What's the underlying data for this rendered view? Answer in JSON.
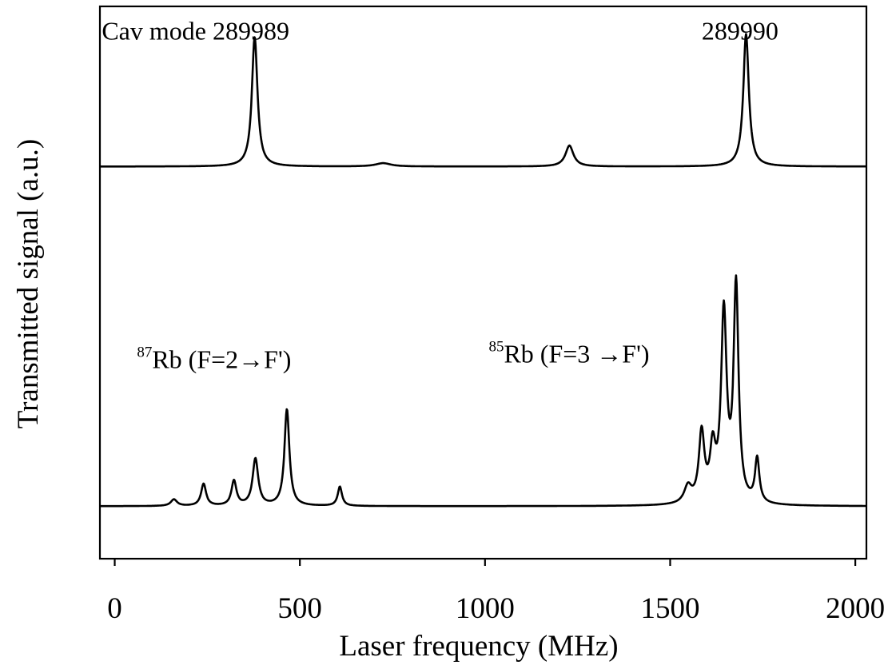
{
  "chart_data": {
    "type": "line",
    "title": "",
    "xlabel": "Laser frequency (MHz)",
    "ylabel": "Transmitted signal (a.u.)",
    "xlim": [
      -40,
      2030
    ],
    "ylim": [
      0,
      1
    ],
    "x_ticks": [
      0,
      500,
      1000,
      1500,
      2000
    ],
    "x_tick_labels": [
      "0",
      "500",
      "1000",
      "1500",
      "2000"
    ],
    "y_ticks": [],
    "grid": false,
    "legend": "none",
    "series": [
      {
        "baseline": 0.71,
        "peaks": [
          {
            "x": 378,
            "height": 0.235,
            "width": 9
          },
          {
            "x": 725,
            "height": 0.006,
            "width": 25
          },
          {
            "x": 1228,
            "height": 0.038,
            "width": 13
          },
          {
            "x": 1705,
            "height": 0.24,
            "width": 9
          }
        ]
      },
      {
        "baseline": 0.095,
        "peaks": [
          {
            "x": 160,
            "height": 0.012,
            "width": 10
          },
          {
            "x": 240,
            "height": 0.04,
            "width": 8
          },
          {
            "x": 322,
            "height": 0.045,
            "width": 8
          },
          {
            "x": 380,
            "height": 0.085,
            "width": 9
          },
          {
            "x": 465,
            "height": 0.175,
            "width": 8
          },
          {
            "x": 608,
            "height": 0.035,
            "width": 7
          },
          {
            "x": 1548,
            "height": 0.03,
            "width": 12
          },
          {
            "x": 1585,
            "height": 0.125,
            "width": 9
          },
          {
            "x": 1615,
            "height": 0.09,
            "width": 9
          },
          {
            "x": 1645,
            "height": 0.34,
            "width": 9
          },
          {
            "x": 1678,
            "height": 0.39,
            "width": 8
          },
          {
            "x": 1735,
            "height": 0.08,
            "width": 7
          }
        ]
      }
    ],
    "annotations": [
      {
        "id": "cav1",
        "text": "Cav mode 289989",
        "x": -35,
        "y": 0.94
      },
      {
        "id": "cav2",
        "text": "289990",
        "x": 1585,
        "y": 0.94
      },
      {
        "id": "rb87",
        "sup": "87",
        "text": "Rb (F=2→F')",
        "x": 60,
        "y": 0.345
      },
      {
        "id": "rb85",
        "sup": "85",
        "text": "Rb (F=3 →F')",
        "x": 1010,
        "y": 0.355
      }
    ]
  }
}
